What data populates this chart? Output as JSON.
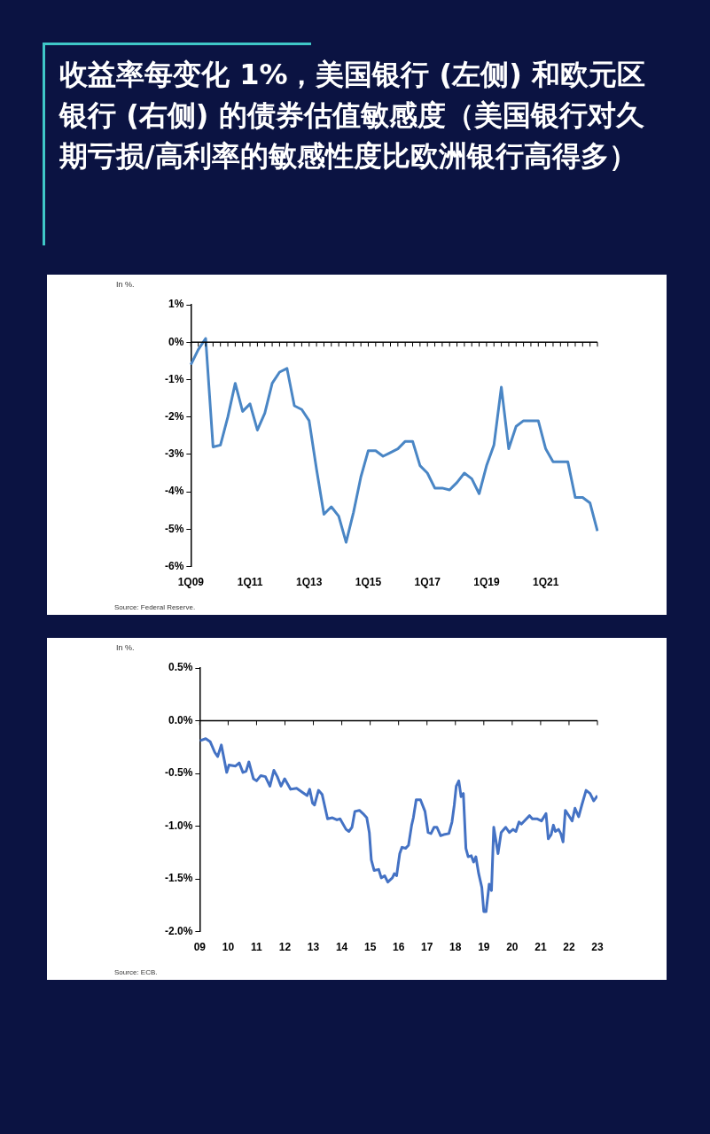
{
  "chart_data": [
    {
      "type": "line",
      "title": "收益率每变化 1%，美国银行 (左侧) 和欧元区银行 (右侧) 的债券估值敏感度（美国银行对久期亏损/高利率的敏感性度比欧洲银行高得多）",
      "ylabel": "In %.",
      "annotations": [
        "Source: Federal Reserve."
      ],
      "categories": [
        "1Q09",
        null,
        null,
        null,
        null,
        null,
        null,
        null,
        "1Q11",
        null,
        null,
        null,
        null,
        null,
        null,
        null,
        "1Q13",
        null,
        null,
        null,
        null,
        null,
        null,
        null,
        "1Q15",
        null,
        null,
        null,
        null,
        null,
        null,
        null,
        "1Q17",
        null,
        null,
        null,
        null,
        null,
        null,
        null,
        "1Q19",
        null,
        null,
        null,
        null,
        null,
        null,
        null,
        "1Q21",
        null,
        null,
        null,
        null,
        null,
        null,
        null
      ],
      "series": [
        {
          "color": "#4a86c5",
          "values": [
            -0.6,
            -0.2,
            0.1,
            -2.8,
            -2.75,
            -2.0,
            -1.1,
            -1.85,
            -1.65,
            -2.35,
            -1.9,
            -1.1,
            -0.8,
            -0.7,
            -1.7,
            -1.8,
            -2.1,
            -3.4,
            -4.6,
            -4.4,
            -4.65,
            -5.35,
            -4.55,
            -3.6,
            -2.9,
            -2.9,
            -3.05,
            -2.95,
            -2.85,
            -2.65,
            -2.65,
            -3.3,
            -3.5,
            -3.9,
            -3.9,
            -3.95,
            -3.75,
            -3.5,
            -3.65,
            -4.05,
            -3.3,
            -2.75,
            -1.2,
            -2.85,
            -2.25,
            -2.1,
            -2.1,
            -2.1,
            -2.85,
            -3.2,
            -3.2,
            -3.2,
            -4.15,
            -4.15,
            -4.3,
            -5.05
          ]
        }
      ],
      "ylim": [
        -6,
        1
      ],
      "yticks": [
        {
          "value": 1,
          "label": "1%"
        },
        {
          "value": 0,
          "label": "0%"
        },
        {
          "value": -1,
          "label": "-1%"
        },
        {
          "value": -2,
          "label": "-2%"
        },
        {
          "value": -3,
          "label": "-3%"
        },
        {
          "value": -4,
          "label": "-4%"
        },
        {
          "value": -5,
          "label": "-5%"
        },
        {
          "value": -6,
          "label": "-6%"
        }
      ],
      "marker": "none",
      "line_style": "solid"
    },
    {
      "type": "line",
      "ylabel": "In %.",
      "annotations": [
        "Source: ECB."
      ],
      "x": [
        2009.0,
        2009.21,
        2009.37,
        2009.53,
        2009.63,
        2009.76,
        2009.95,
        2010.03,
        2010.26,
        2010.39,
        2010.52,
        2010.63,
        2010.73,
        2010.89,
        2011.0,
        2011.15,
        2011.31,
        2011.47,
        2011.61,
        2011.73,
        2011.86,
        2011.99,
        2012.2,
        2012.41,
        2012.62,
        2012.78,
        2012.87,
        2012.97,
        2013.04,
        2013.18,
        2013.31,
        2013.5,
        2013.67,
        2013.83,
        2013.94,
        2014.15,
        2014.25,
        2014.36,
        2014.46,
        2014.62,
        2014.78,
        2014.88,
        2014.97,
        2015.04,
        2015.14,
        2015.3,
        2015.39,
        2015.51,
        2015.62,
        2015.78,
        2015.85,
        2015.93,
        2016.04,
        2016.12,
        2016.25,
        2016.35,
        2016.46,
        2016.52,
        2016.62,
        2016.77,
        2016.93,
        2017.04,
        2017.14,
        2017.25,
        2017.35,
        2017.48,
        2017.59,
        2017.77,
        2017.88,
        2017.96,
        2018.03,
        2018.12,
        2018.2,
        2018.28,
        2018.37,
        2018.45,
        2018.56,
        2018.64,
        2018.72,
        2018.82,
        2018.93,
        2019.0,
        2019.08,
        2019.19,
        2019.27,
        2019.35,
        2019.5,
        2019.61,
        2019.77,
        2019.9,
        2020.03,
        2020.13,
        2020.24,
        2020.32,
        2020.61,
        2020.71,
        2020.87,
        2021.03,
        2021.19,
        2021.27,
        2021.37,
        2021.45,
        2021.52,
        2021.63,
        2021.71,
        2021.79,
        2021.87,
        2021.97,
        2022.11,
        2022.21,
        2022.34,
        2022.45,
        2022.6,
        2022.74,
        2022.87,
        2023.0
      ],
      "series": [
        {
          "color": "#4472c4",
          "values": [
            -0.19,
            -0.17,
            -0.2,
            -0.3,
            -0.34,
            -0.23,
            -0.49,
            -0.42,
            -0.43,
            -0.4,
            -0.49,
            -0.48,
            -0.39,
            -0.55,
            -0.57,
            -0.52,
            -0.53,
            -0.62,
            -0.47,
            -0.53,
            -0.62,
            -0.55,
            -0.65,
            -0.64,
            -0.68,
            -0.71,
            -0.65,
            -0.78,
            -0.8,
            -0.66,
            -0.7,
            -0.93,
            -0.92,
            -0.94,
            -0.93,
            -1.03,
            -1.05,
            -1.01,
            -0.86,
            -0.85,
            -0.89,
            -0.92,
            -1.06,
            -1.32,
            -1.42,
            -1.41,
            -1.49,
            -1.47,
            -1.53,
            -1.49,
            -1.45,
            -1.47,
            -1.26,
            -1.2,
            -1.21,
            -1.18,
            -0.99,
            -0.92,
            -0.75,
            -0.75,
            -0.86,
            -1.06,
            -1.07,
            -1.01,
            -1.01,
            -1.09,
            -1.08,
            -1.07,
            -0.96,
            -0.8,
            -0.62,
            -0.57,
            -0.72,
            -0.69,
            -1.21,
            -1.29,
            -1.28,
            -1.34,
            -1.29,
            -1.45,
            -1.58,
            -1.81,
            -1.81,
            -1.55,
            -1.61,
            -1.01,
            -1.26,
            -1.06,
            -1.01,
            -1.06,
            -1.03,
            -1.05,
            -0.96,
            -0.98,
            -0.9,
            -0.93,
            -0.93,
            -0.95,
            -0.88,
            -1.12,
            -1.08,
            -0.99,
            -1.05,
            -1.03,
            -1.07,
            -1.15,
            -0.85,
            -0.89,
            -0.95,
            -0.83,
            -0.91,
            -0.8,
            -0.66,
            -0.69,
            -0.76,
            -0.71
          ]
        }
      ],
      "xlim": [
        2009,
        2023
      ],
      "xticks": [
        {
          "value": 2009,
          "label": "09"
        },
        {
          "value": 2010,
          "label": "10"
        },
        {
          "value": 2011,
          "label": "11"
        },
        {
          "value": 2012,
          "label": "12"
        },
        {
          "value": 2013,
          "label": "13"
        },
        {
          "value": 2014,
          "label": "14"
        },
        {
          "value": 2015,
          "label": "15"
        },
        {
          "value": 2016,
          "label": "16"
        },
        {
          "value": 2017,
          "label": "17"
        },
        {
          "value": 2018,
          "label": "18"
        },
        {
          "value": 2019,
          "label": "19"
        },
        {
          "value": 2020,
          "label": "20"
        },
        {
          "value": 2021,
          "label": "21"
        },
        {
          "value": 2022,
          "label": "22"
        },
        {
          "value": 2023,
          "label": "23"
        }
      ],
      "ylim": [
        -2,
        0.5
      ],
      "yticks": [
        {
          "value": 0.5,
          "label": "0.5%"
        },
        {
          "value": 0,
          "label": "0.0%"
        },
        {
          "value": -0.5,
          "label": "-0.5%"
        },
        {
          "value": -1,
          "label": "-1.0%"
        },
        {
          "value": -1.5,
          "label": "-1.5%"
        },
        {
          "value": -2,
          "label": "-2.0%"
        }
      ],
      "marker": "none",
      "line_style": "solid"
    }
  ]
}
